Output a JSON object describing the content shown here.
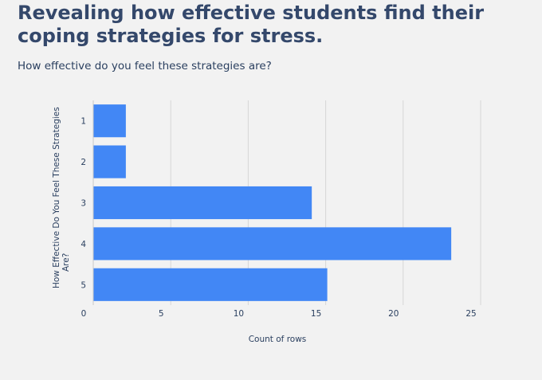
{
  "header": {
    "title": "Revealing how effective students find their coping strategies for stress.",
    "subtitle": "How effective do you feel these strategies are?"
  },
  "colors": {
    "background": "#f2f2f2",
    "bar": "#4287f5",
    "grid": "#d6d6d6",
    "text": "#2a3f5f"
  },
  "chart_data": {
    "type": "bar",
    "orientation": "horizontal",
    "categories": [
      "1",
      "2",
      "3",
      "4",
      "5"
    ],
    "values": [
      2,
      2,
      14,
      23,
      15
    ],
    "xlabel": "Count of rows",
    "ylabel_lines": [
      "How Effective Do You Feel These Strategies",
      "Are?"
    ],
    "xlim": [
      0,
      25
    ],
    "xticks": [
      0,
      5,
      10,
      15,
      20,
      25
    ],
    "grid": true,
    "legend": "none"
  }
}
